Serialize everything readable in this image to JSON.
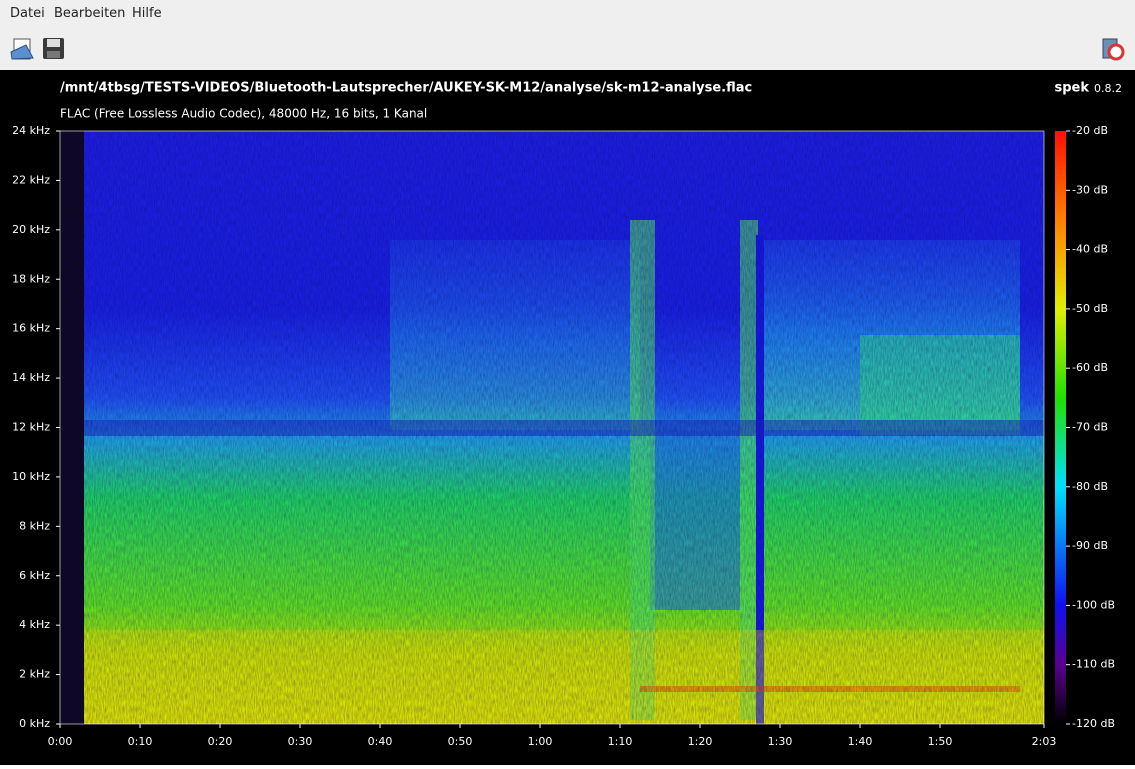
{
  "menu": [
    "Datei",
    "Bearbeiten",
    "Hilfe"
  ],
  "file": {
    "path": "/mnt/4tbsg/TESTS-VIDEOS/Bluetooth-Lautsprecher/AUKEY-SK-M12/analyse/sk-m12-analyse.flac",
    "info": "FLAC (Free Lossless Audio Codec), 48000 Hz, 16 bits, 1 Kanal"
  },
  "app": {
    "name": "spek",
    "version": "0.8.2"
  },
  "spectrogram": {
    "time_axis": {
      "range": [
        0,
        123
      ],
      "ticks": [
        {
          "value": 0,
          "label": "0:00"
        },
        {
          "value": 10,
          "label": "0:10"
        },
        {
          "value": 20,
          "label": "0:20"
        },
        {
          "value": 30,
          "label": "0:30"
        },
        {
          "value": 40,
          "label": "0:40"
        },
        {
          "value": 50,
          "label": "0:50"
        },
        {
          "value": 60,
          "label": "1:00"
        },
        {
          "value": 70,
          "label": "1:10"
        },
        {
          "value": 80,
          "label": "1:20"
        },
        {
          "value": 90,
          "label": "1:30"
        },
        {
          "value": 100,
          "label": "1:40"
        },
        {
          "value": 110,
          "label": "1:50"
        },
        {
          "value": 123,
          "label": "2:03"
        }
      ]
    },
    "frequency_axis": {
      "range": [
        0,
        24
      ],
      "ticks": [
        {
          "value": 0,
          "label": "0 kHz"
        },
        {
          "value": 2,
          "label": "2 kHz"
        },
        {
          "value": 4,
          "label": "4 kHz"
        },
        {
          "value": 6,
          "label": "6 kHz"
        },
        {
          "value": 8,
          "label": "8 kHz"
        },
        {
          "value": 10,
          "label": "10 kHz"
        },
        {
          "value": 12,
          "label": "12 kHz"
        },
        {
          "value": 14,
          "label": "14 kHz"
        },
        {
          "value": 16,
          "label": "16 kHz"
        },
        {
          "value": 18,
          "label": "18 kHz"
        },
        {
          "value": 20,
          "label": "20 kHz"
        },
        {
          "value": 22,
          "label": "22 kHz"
        },
        {
          "value": 24,
          "label": "24 kHz"
        }
      ]
    },
    "level_axis": {
      "range": [
        -120,
        -20
      ],
      "ticks": [
        {
          "value": -20,
          "label": "-20 dB"
        },
        {
          "value": -30,
          "label": "-30 dB"
        },
        {
          "value": -40,
          "label": "-40 dB"
        },
        {
          "value": -50,
          "label": "-50 dB"
        },
        {
          "value": -60,
          "label": "-60 dB"
        },
        {
          "value": -70,
          "label": "-70 dB"
        },
        {
          "value": -80,
          "label": "-80 dB"
        },
        {
          "value": -90,
          "label": "-90 dB"
        },
        {
          "value": -100,
          "label": "-100 dB"
        },
        {
          "value": -110,
          "label": "-110 dB"
        },
        {
          "value": -120,
          "label": "-120 dB"
        }
      ]
    }
  }
}
